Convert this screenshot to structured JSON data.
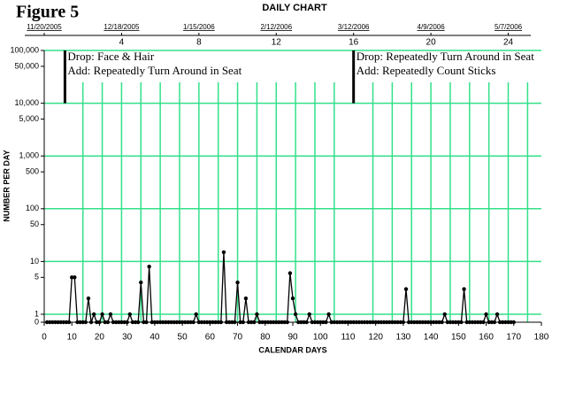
{
  "chart_data": {
    "type": "line",
    "figure_label": "Figure 5",
    "title": "DAILY CHART",
    "xlabel": "CALENDAR DAYS",
    "ylabel": "NUMBER PER DAY",
    "log_scale": true,
    "grid": true,
    "grid_color": "#33e08a",
    "xlim": [
      0,
      180
    ],
    "xticks": [
      0,
      10,
      20,
      30,
      40,
      50,
      60,
      70,
      80,
      90,
      100,
      110,
      120,
      130,
      140,
      150,
      160,
      170,
      180
    ],
    "xgrid": [
      14,
      21,
      28,
      35,
      42,
      49,
      56,
      63,
      70,
      77,
      84,
      91,
      98,
      105,
      119,
      126,
      133,
      140,
      147,
      154,
      161,
      168,
      175
    ],
    "ylim": [
      0,
      100000
    ],
    "yticks": [
      {
        "value": 100000,
        "label": "100,000"
      },
      {
        "value": 50000,
        "label": "50,000"
      },
      {
        "value": 10000,
        "label": "10,000"
      },
      {
        "value": 5000,
        "label": "5,000"
      },
      {
        "value": 1000,
        "label": "1,000"
      },
      500,
      100,
      50,
      10,
      5,
      1,
      0
    ],
    "ygrid": [
      100000,
      10000,
      1000,
      100,
      10,
      1
    ],
    "date_ticks": [
      {
        "value": 0,
        "label": "11/20/2005"
      },
      {
        "value": 28,
        "label": "12/18/2005"
      },
      {
        "value": 56,
        "label": "1/15/2006"
      },
      {
        "value": 84,
        "label": "2/12/2006"
      },
      {
        "value": 112,
        "label": "3/12/2006"
      },
      {
        "value": 140,
        "label": "4/9/2006"
      },
      {
        "value": 168,
        "label": "5/7/2006"
      }
    ],
    "week_ticks": [
      4,
      8,
      12,
      16,
      20,
      24
    ],
    "phase_changes": [
      {
        "x": 7.5,
        "lines": [
          "Drop: Face & Hair",
          "Add: Repeatedly Turn Around in Seat"
        ]
      },
      {
        "x": 112,
        "lines": [
          "Drop: Repeatedly Turn Around in Seat",
          "Add: Repeatedly Count Sticks"
        ]
      }
    ],
    "series": [
      {
        "name": "Count",
        "color": "#000000",
        "x": [
          1,
          2,
          3,
          4,
          5,
          6,
          7,
          8,
          9,
          10,
          11,
          12,
          13,
          14,
          15,
          16,
          17,
          18,
          19,
          20,
          21,
          22,
          23,
          24,
          25,
          26,
          27,
          28,
          29,
          30,
          31,
          32,
          33,
          34,
          35,
          36,
          37,
          38,
          39,
          40,
          41,
          42,
          43,
          44,
          45,
          46,
          47,
          48,
          49,
          50,
          51,
          52,
          53,
          54,
          55,
          56,
          57,
          58,
          59,
          60,
          61,
          62,
          63,
          64,
          65,
          66,
          67,
          68,
          69,
          70,
          71,
          72,
          73,
          74,
          75,
          76,
          77,
          78,
          79,
          80,
          81,
          82,
          83,
          84,
          85,
          86,
          87,
          88,
          89,
          90,
          91,
          92,
          93,
          94,
          95,
          96,
          97,
          98,
          99,
          100,
          101,
          102,
          103,
          104,
          105,
          106,
          107,
          108,
          109,
          110,
          111,
          112,
          113,
          114,
          115,
          116,
          117,
          118,
          119,
          120,
          121,
          122,
          123,
          124,
          125,
          126,
          127,
          128,
          129,
          130,
          131,
          132,
          133,
          134,
          135,
          136,
          137,
          138,
          139,
          140,
          141,
          142,
          143,
          144,
          145,
          146,
          147,
          148,
          149,
          150,
          151,
          152,
          153,
          154,
          155,
          156,
          157,
          158,
          159,
          160,
          161,
          162,
          163,
          164,
          165,
          166,
          167,
          168,
          169,
          170
        ],
        "values": [
          0,
          0,
          0,
          0,
          0,
          0,
          0,
          0,
          0,
          5,
          5,
          0,
          0,
          0,
          0,
          2,
          0,
          1,
          0,
          0,
          1,
          0,
          0,
          1,
          0,
          0,
          0,
          0,
          0,
          0,
          1,
          0,
          0,
          0,
          4,
          0,
          0,
          8,
          0,
          0,
          0,
          0,
          0,
          0,
          0,
          0,
          0,
          0,
          0,
          0,
          0,
          0,
          0,
          0,
          1,
          0,
          0,
          0,
          0,
          0,
          0,
          0,
          0,
          0,
          15,
          0,
          0,
          0,
          0,
          4,
          0,
          0,
          2,
          0,
          0,
          0,
          1,
          0,
          0,
          0,
          0,
          0,
          0,
          0,
          0,
          0,
          0,
          0,
          6,
          2,
          1,
          0,
          0,
          0,
          0,
          1,
          0,
          0,
          0,
          0,
          0,
          0,
          1,
          0,
          0,
          0,
          0,
          0,
          0,
          0,
          0,
          0,
          0,
          0,
          0,
          0,
          0,
          0,
          0,
          0,
          0,
          0,
          0,
          0,
          0,
          0,
          0,
          0,
          0,
          0,
          3,
          0,
          0,
          0,
          0,
          0,
          0,
          0,
          0,
          0,
          0,
          0,
          0,
          0,
          1,
          0,
          0,
          0,
          0,
          0,
          0,
          3,
          0,
          0,
          0,
          0,
          0,
          0,
          0,
          1,
          0,
          0,
          0,
          1,
          0,
          0,
          0,
          0,
          0,
          0
        ]
      }
    ]
  }
}
